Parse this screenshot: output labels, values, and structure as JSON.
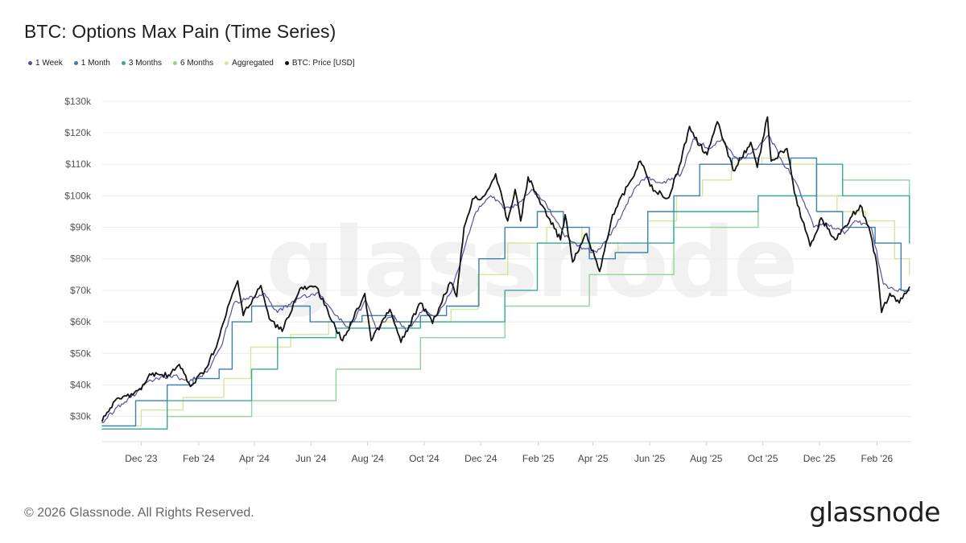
{
  "title": "BTC: Options Max Pain (Time Series)",
  "footer": {
    "copyright": "© 2026 Glassnode. All Rights Reserved.",
    "brand": "glassnode"
  },
  "watermark": "glassnode",
  "legend": [
    {
      "label": "1 Week",
      "color": "#5a4f9f"
    },
    {
      "label": "1 Month",
      "color": "#3f7fb0"
    },
    {
      "label": "3 Months",
      "color": "#3aa99a"
    },
    {
      "label": "6 Months",
      "color": "#8fd49a"
    },
    {
      "label": "Aggregated",
      "color": "#d3e89a"
    },
    {
      "label": "BTC: Price [USD]",
      "color": "#111111"
    }
  ],
  "chart_data": {
    "type": "line",
    "title": "BTC: Options Max Pain (Time Series)",
    "xlabel": "",
    "ylabel": "",
    "x_range": [
      "2023-10-20",
      "2026-03-10"
    ],
    "ylim": [
      22000,
      132000
    ],
    "y_ticks": [
      30000,
      40000,
      50000,
      60000,
      70000,
      80000,
      90000,
      100000,
      110000,
      120000,
      130000
    ],
    "y_tick_labels": [
      "$30k",
      "$40k",
      "$50k",
      "$60k",
      "$70k",
      "$80k",
      "$90k",
      "$100k",
      "$110k",
      "$120k",
      "$130k"
    ],
    "x_ticks": [
      "2023-12-01",
      "2024-02-01",
      "2024-04-01",
      "2024-06-01",
      "2024-08-01",
      "2024-10-01",
      "2024-12-01",
      "2025-02-01",
      "2025-04-01",
      "2025-06-01",
      "2025-08-01",
      "2025-10-01",
      "2025-12-01",
      "2026-02-01"
    ],
    "x_tick_labels": [
      "Dec '23",
      "Feb '24",
      "Apr '24",
      "Jun '24",
      "Aug '24",
      "Oct '24",
      "Dec '24",
      "Feb '25",
      "Apr '25",
      "Jun '25",
      "Aug '25",
      "Oct '25",
      "Dec '25",
      "Feb '26"
    ],
    "grid": true,
    "legend_position": "top-left",
    "series": [
      {
        "name": "BTC: Price [USD]",
        "color": "#111111",
        "points": [
          [
            "2023-10-20",
            28500
          ],
          [
            "2023-11-01",
            34500
          ],
          [
            "2023-11-15",
            36500
          ],
          [
            "2023-12-01",
            38500
          ],
          [
            "2023-12-10",
            43500
          ],
          [
            "2024-01-01",
            43000
          ],
          [
            "2024-01-11",
            46500
          ],
          [
            "2024-01-23",
            39500
          ],
          [
            "2024-02-08",
            45000
          ],
          [
            "2024-02-20",
            52000
          ],
          [
            "2024-03-05",
            66000
          ],
          [
            "2024-03-14",
            73000
          ],
          [
            "2024-03-20",
            62000
          ],
          [
            "2024-04-08",
            71500
          ],
          [
            "2024-04-17",
            61000
          ],
          [
            "2024-05-01",
            57000
          ],
          [
            "2024-05-20",
            70500
          ],
          [
            "2024-06-07",
            71000
          ],
          [
            "2024-06-24",
            60000
          ],
          [
            "2024-07-05",
            54000
          ],
          [
            "2024-07-29",
            69000
          ],
          [
            "2024-08-05",
            54000
          ],
          [
            "2024-08-25",
            64000
          ],
          [
            "2024-09-06",
            53500
          ],
          [
            "2024-09-27",
            66000
          ],
          [
            "2024-10-10",
            59500
          ],
          [
            "2024-10-29",
            72500
          ],
          [
            "2024-11-05",
            68000
          ],
          [
            "2024-11-13",
            90000
          ],
          [
            "2024-11-22",
            99000
          ],
          [
            "2024-12-05",
            100000
          ],
          [
            "2024-12-17",
            107000
          ],
          [
            "2024-12-30",
            92000
          ],
          [
            "2025-01-07",
            102000
          ],
          [
            "2025-01-13",
            92000
          ],
          [
            "2025-01-21",
            106000
          ],
          [
            "2025-02-05",
            97000
          ],
          [
            "2025-02-25",
            86000
          ],
          [
            "2025-03-02",
            94000
          ],
          [
            "2025-03-10",
            79000
          ],
          [
            "2025-03-25",
            88000
          ],
          [
            "2025-04-08",
            76000
          ],
          [
            "2025-04-22",
            94000
          ],
          [
            "2025-05-10",
            104000
          ],
          [
            "2025-05-22",
            111000
          ],
          [
            "2025-06-05",
            101500
          ],
          [
            "2025-06-22",
            99500
          ],
          [
            "2025-07-03",
            109500
          ],
          [
            "2025-07-14",
            122000
          ],
          [
            "2025-07-25",
            116000
          ],
          [
            "2025-08-02",
            113000
          ],
          [
            "2025-08-13",
            123500
          ],
          [
            "2025-08-30",
            108000
          ],
          [
            "2025-09-18",
            117000
          ],
          [
            "2025-09-25",
            109000
          ],
          [
            "2025-10-06",
            125000
          ],
          [
            "2025-10-10",
            111000
          ],
          [
            "2025-10-27",
            115000
          ],
          [
            "2025-11-04",
            101000
          ],
          [
            "2025-11-21",
            84000
          ],
          [
            "2025-12-03",
            93000
          ],
          [
            "2025-12-18",
            86000
          ],
          [
            "2026-01-05",
            93500
          ],
          [
            "2026-01-14",
            97000
          ],
          [
            "2026-01-25",
            88000
          ],
          [
            "2026-02-01",
            78000
          ],
          [
            "2026-02-06",
            63000
          ],
          [
            "2026-02-15",
            69000
          ],
          [
            "2026-02-25",
            66000
          ],
          [
            "2026-03-08",
            71000
          ]
        ]
      },
      {
        "name": "1 Week",
        "color": "#5a4f9f",
        "points": [
          [
            "2023-10-20",
            28000
          ],
          [
            "2023-11-05",
            33000
          ],
          [
            "2023-11-20",
            36000
          ],
          [
            "2023-12-08",
            41000
          ],
          [
            "2024-01-05",
            43000
          ],
          [
            "2024-01-20",
            41000
          ],
          [
            "2024-02-10",
            44000
          ],
          [
            "2024-02-25",
            52000
          ],
          [
            "2024-03-10",
            66000
          ],
          [
            "2024-03-22",
            67000
          ],
          [
            "2024-04-12",
            69000
          ],
          [
            "2024-04-26",
            63000
          ],
          [
            "2024-05-22",
            68000
          ],
          [
            "2024-06-10",
            69000
          ],
          [
            "2024-06-28",
            62000
          ],
          [
            "2024-07-12",
            58000
          ],
          [
            "2024-07-30",
            67000
          ],
          [
            "2024-08-10",
            58000
          ],
          [
            "2024-08-28",
            62000
          ],
          [
            "2024-09-12",
            57000
          ],
          [
            "2024-09-30",
            64000
          ],
          [
            "2024-10-14",
            62000
          ],
          [
            "2024-10-31",
            70000
          ],
          [
            "2024-11-15",
            85000
          ],
          [
            "2024-11-26",
            95000
          ],
          [
            "2024-12-12",
            100000
          ],
          [
            "2024-12-27",
            96000
          ],
          [
            "2025-01-10",
            97000
          ],
          [
            "2025-01-25",
            102000
          ],
          [
            "2025-02-10",
            97000
          ],
          [
            "2025-02-28",
            88000
          ],
          [
            "2025-03-15",
            84000
          ],
          [
            "2025-04-05",
            82000
          ],
          [
            "2025-04-25",
            90000
          ],
          [
            "2025-05-15",
            102000
          ],
          [
            "2025-05-28",
            106000
          ],
          [
            "2025-06-15",
            104000
          ],
          [
            "2025-07-05",
            107000
          ],
          [
            "2025-07-18",
            118000
          ],
          [
            "2025-08-05",
            115000
          ],
          [
            "2025-08-18",
            118000
          ],
          [
            "2025-09-05",
            111000
          ],
          [
            "2025-09-20",
            114000
          ],
          [
            "2025-10-08",
            119000
          ],
          [
            "2025-10-20",
            112000
          ],
          [
            "2025-11-06",
            104000
          ],
          [
            "2025-11-25",
            90000
          ],
          [
            "2025-12-10",
            91000
          ],
          [
            "2025-12-28",
            88000
          ],
          [
            "2026-01-10",
            92000
          ],
          [
            "2026-01-26",
            90000
          ],
          [
            "2026-02-08",
            72000
          ],
          [
            "2026-02-20",
            70000
          ],
          [
            "2026-03-08",
            70000
          ]
        ]
      },
      {
        "name": "1 Month",
        "color": "#3f7fb0",
        "points": [
          [
            "2023-10-20",
            27000
          ],
          [
            "2023-11-25",
            35000
          ],
          [
            "2023-12-29",
            40000
          ],
          [
            "2024-01-26",
            42000
          ],
          [
            "2024-02-23",
            45000
          ],
          [
            "2024-03-08",
            60000
          ],
          [
            "2024-03-29",
            65000
          ],
          [
            "2024-04-26",
            65000
          ],
          [
            "2024-05-31",
            60000
          ],
          [
            "2024-06-28",
            60000
          ],
          [
            "2024-07-26",
            62000
          ],
          [
            "2024-08-30",
            60000
          ],
          [
            "2024-09-27",
            62000
          ],
          [
            "2024-10-25",
            65000
          ],
          [
            "2024-11-29",
            80000
          ],
          [
            "2024-12-27",
            90000
          ],
          [
            "2025-01-31",
            95000
          ],
          [
            "2025-02-28",
            90000
          ],
          [
            "2025-03-28",
            80000
          ],
          [
            "2025-04-25",
            82000
          ],
          [
            "2025-05-30",
            95000
          ],
          [
            "2025-06-27",
            100000
          ],
          [
            "2025-07-25",
            110000
          ],
          [
            "2025-08-29",
            112000
          ],
          [
            "2025-09-26",
            110000
          ],
          [
            "2025-10-31",
            112000
          ],
          [
            "2025-11-28",
            95000
          ],
          [
            "2025-12-26",
            90000
          ],
          [
            "2026-01-30",
            85000
          ],
          [
            "2026-02-27",
            70000
          ],
          [
            "2026-03-08",
            70000
          ]
        ]
      },
      {
        "name": "3 Months",
        "color": "#3aa99a",
        "points": [
          [
            "2023-10-20",
            26000
          ],
          [
            "2023-12-29",
            35000
          ],
          [
            "2024-03-29",
            45000
          ],
          [
            "2024-04-26",
            55000
          ],
          [
            "2024-06-28",
            58000
          ],
          [
            "2024-09-27",
            60000
          ],
          [
            "2024-12-27",
            70000
          ],
          [
            "2025-01-31",
            85000
          ],
          [
            "2025-03-28",
            85000
          ],
          [
            "2025-05-30",
            85000
          ],
          [
            "2025-06-27",
            95000
          ],
          [
            "2025-09-26",
            100000
          ],
          [
            "2025-11-28",
            110000
          ],
          [
            "2025-12-26",
            100000
          ],
          [
            "2026-03-08",
            85000
          ]
        ]
      },
      {
        "name": "6 Months",
        "color": "#8fd49a",
        "points": [
          [
            "2023-10-20",
            26000
          ],
          [
            "2023-12-29",
            30000
          ],
          [
            "2024-03-29",
            35000
          ],
          [
            "2024-06-28",
            45000
          ],
          [
            "2024-09-27",
            55000
          ],
          [
            "2024-12-27",
            65000
          ],
          [
            "2025-03-28",
            75000
          ],
          [
            "2025-06-27",
            90000
          ],
          [
            "2025-09-26",
            100000
          ],
          [
            "2025-12-26",
            105000
          ],
          [
            "2026-03-08",
            90000
          ]
        ]
      },
      {
        "name": "Aggregated",
        "color": "#d3e89a",
        "points": [
          [
            "2023-10-20",
            27000
          ],
          [
            "2023-12-01",
            32000
          ],
          [
            "2024-01-15",
            36000
          ],
          [
            "2024-02-28",
            42000
          ],
          [
            "2024-03-28",
            52000
          ],
          [
            "2024-05-10",
            56000
          ],
          [
            "2024-06-20",
            60000
          ],
          [
            "2024-08-01",
            60000
          ],
          [
            "2024-09-20",
            60000
          ],
          [
            "2024-10-30",
            64000
          ],
          [
            "2024-11-28",
            75000
          ],
          [
            "2024-12-30",
            85000
          ],
          [
            "2025-02-10",
            90000
          ],
          [
            "2025-03-20",
            85000
          ],
          [
            "2025-04-28",
            82000
          ],
          [
            "2025-05-30",
            92000
          ],
          [
            "2025-06-30",
            100000
          ],
          [
            "2025-07-28",
            105000
          ],
          [
            "2025-08-28",
            110000
          ],
          [
            "2025-09-30",
            112000
          ],
          [
            "2025-10-31",
            110000
          ],
          [
            "2025-11-28",
            100000
          ],
          [
            "2025-12-20",
            95000
          ],
          [
            "2026-01-20",
            92000
          ],
          [
            "2026-02-20",
            80000
          ],
          [
            "2026-03-08",
            75000
          ]
        ]
      }
    ]
  }
}
